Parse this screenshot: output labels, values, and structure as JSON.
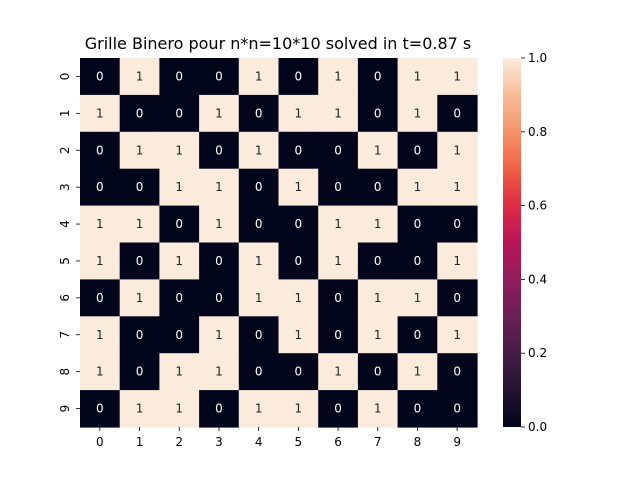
{
  "chart_data": {
    "type": "heatmap",
    "title": "Grille Binero pour n*n=10*10 solved in t=0.87 s",
    "x_tick_labels": [
      "0",
      "1",
      "2",
      "3",
      "4",
      "5",
      "6",
      "7",
      "8",
      "9"
    ],
    "y_tick_labels": [
      "0",
      "1",
      "2",
      "3",
      "4",
      "5",
      "6",
      "7",
      "8",
      "9"
    ],
    "values": [
      [
        0,
        1,
        0,
        0,
        1,
        0,
        1,
        0,
        1,
        1
      ],
      [
        1,
        0,
        0,
        1,
        0,
        1,
        1,
        0,
        1,
        0
      ],
      [
        0,
        1,
        1,
        0,
        1,
        0,
        0,
        1,
        0,
        1
      ],
      [
        0,
        0,
        1,
        1,
        0,
        1,
        0,
        0,
        1,
        1
      ],
      [
        1,
        1,
        0,
        1,
        0,
        0,
        1,
        1,
        0,
        0
      ],
      [
        1,
        0,
        1,
        0,
        1,
        0,
        1,
        0,
        0,
        1
      ],
      [
        0,
        1,
        0,
        0,
        1,
        1,
        0,
        1,
        1,
        0
      ],
      [
        1,
        0,
        0,
        1,
        0,
        1,
        0,
        1,
        0,
        1
      ],
      [
        1,
        0,
        1,
        1,
        0,
        0,
        1,
        0,
        1,
        0
      ],
      [
        0,
        1,
        1,
        0,
        1,
        1,
        0,
        1,
        0,
        0
      ]
    ],
    "colorbar": {
      "min": 0,
      "max": 1,
      "tick_labels": [
        "0.0",
        "0.2",
        "0.4",
        "0.6",
        "0.8",
        "1.0"
      ],
      "tick_values": [
        0,
        0.2,
        0.4,
        0.6,
        0.8,
        1.0
      ]
    },
    "colors": {
      "zero": "#03051a",
      "one": "#faebdd",
      "text_on_zero": "#ffffff",
      "text_on_one": "#262626"
    },
    "colormap": "rocket"
  }
}
